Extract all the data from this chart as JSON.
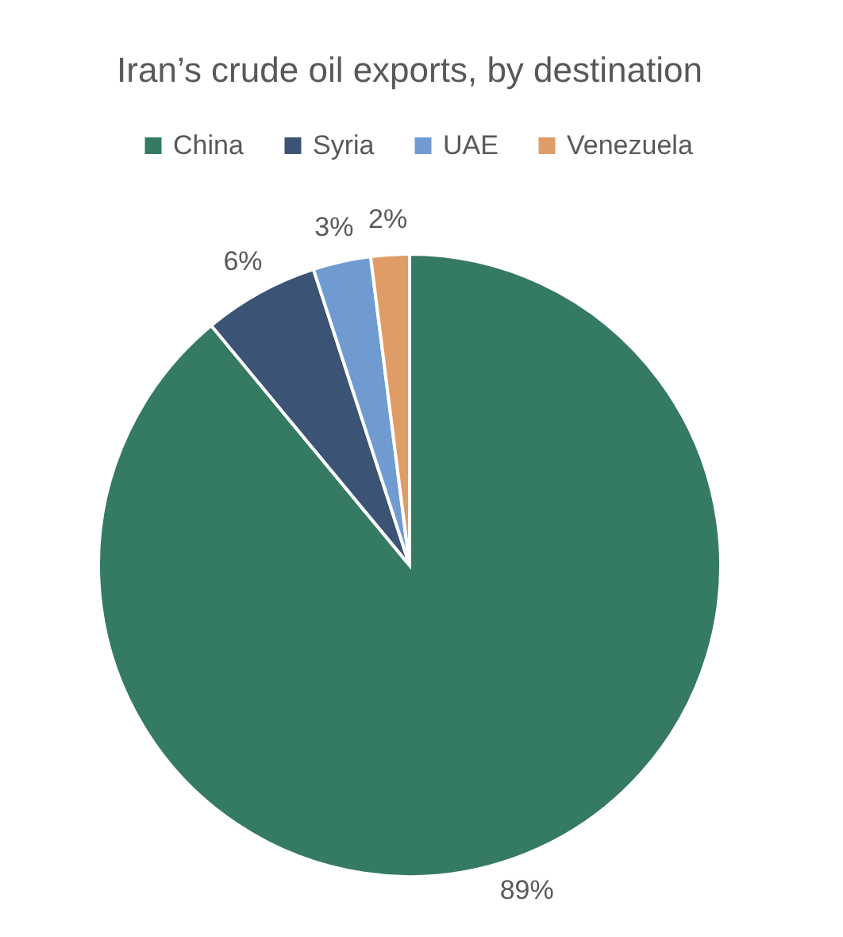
{
  "chart_data": {
    "type": "pie",
    "title": "Iran’s crude oil exports, by destination",
    "categories": [
      "China",
      "Syria",
      "UAE",
      "Venezuela"
    ],
    "values": [
      89,
      6,
      3,
      2
    ],
    "colors": [
      "#357a62",
      "#3b5374",
      "#6f9bd1",
      "#e09c67"
    ],
    "value_labels": [
      "89%",
      "6%",
      "3%",
      "2%"
    ],
    "legend": "top"
  }
}
